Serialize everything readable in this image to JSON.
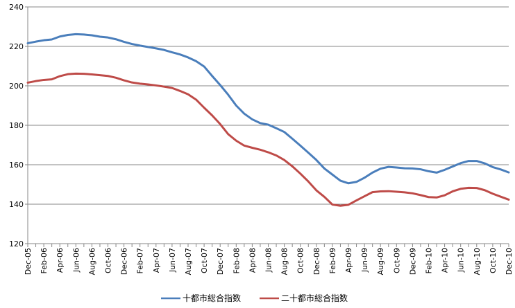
{
  "chart_data": {
    "type": "line",
    "title": "",
    "xlabel": "",
    "ylabel": "",
    "ylim": [
      120,
      240
    ],
    "yticks": [
      120,
      140,
      160,
      180,
      200,
      220,
      240
    ],
    "grid": true,
    "legend_position": "bottom",
    "tick_labels": [
      "Dec-05",
      "Feb-06",
      "Apr-06",
      "Jun-06",
      "Aug-06",
      "Oct-06",
      "Dec-06",
      "Feb-07",
      "Apr-07",
      "Jun-07",
      "Aug-07",
      "Oct-07",
      "Dec-07",
      "Feb-08",
      "Apr-08",
      "Jun-08",
      "Aug-08",
      "Oct-08",
      "Dec-08",
      "Feb-09",
      "Apr-09",
      "Jun-09",
      "Aug-09",
      "Oct-09",
      "Dec-09",
      "Feb-10",
      "Apr-10",
      "Jun-10",
      "Aug-10",
      "Oct-10",
      "Dec-10"
    ],
    "categories": [
      "Dec-05",
      "Jan-06",
      "Feb-06",
      "Mar-06",
      "Apr-06",
      "May-06",
      "Jun-06",
      "Jul-06",
      "Aug-06",
      "Sep-06",
      "Oct-06",
      "Nov-06",
      "Dec-06",
      "Jan-07",
      "Feb-07",
      "Mar-07",
      "Apr-07",
      "May-07",
      "Jun-07",
      "Jul-07",
      "Aug-07",
      "Sep-07",
      "Oct-07",
      "Nov-07",
      "Dec-07",
      "Jan-08",
      "Feb-08",
      "Mar-08",
      "Apr-08",
      "May-08",
      "Jun-08",
      "Jul-08",
      "Aug-08",
      "Sep-08",
      "Oct-08",
      "Nov-08",
      "Dec-08",
      "Jan-09",
      "Feb-09",
      "Mar-09",
      "Apr-09",
      "May-09",
      "Jun-09",
      "Jul-09",
      "Aug-09",
      "Sep-09",
      "Oct-09",
      "Nov-09",
      "Dec-09",
      "Jan-10",
      "Feb-10",
      "Mar-10",
      "Apr-10",
      "May-10",
      "Jun-10",
      "Jul-10",
      "Aug-10",
      "Sep-10",
      "Oct-10",
      "Nov-10",
      "Dec-10"
    ],
    "series": [
      {
        "name": "十都市総合指数",
        "color": "#4A7EBB",
        "values": [
          221.6,
          222.4,
          223.1,
          223.5,
          225.0,
          225.8,
          226.2,
          226.0,
          225.6,
          224.9,
          224.5,
          223.6,
          222.3,
          221.2,
          220.4,
          219.7,
          219.0,
          218.2,
          217.0,
          215.9,
          214.4,
          212.5,
          209.8,
          205.0,
          200.4,
          195.5,
          190.0,
          185.9,
          183.0,
          181.1,
          180.3,
          178.5,
          176.6,
          173.2,
          169.7,
          166.1,
          162.4,
          158.1,
          155.0,
          151.9,
          150.6,
          151.3,
          153.4,
          156.0,
          158.0,
          158.9,
          158.6,
          158.2,
          158.1,
          157.7,
          156.7,
          156.0,
          157.4,
          159.1,
          160.8,
          161.9,
          161.9,
          160.7,
          158.8,
          157.6,
          156.1
        ]
      },
      {
        "name": "二十都市総合指数",
        "color": "#BE4B48",
        "values": [
          201.6,
          202.4,
          203.0,
          203.3,
          204.9,
          205.9,
          206.2,
          206.1,
          205.8,
          205.4,
          205.0,
          204.1,
          202.8,
          201.7,
          201.1,
          200.7,
          200.2,
          199.6,
          198.9,
          197.4,
          195.7,
          193.0,
          188.9,
          185.0,
          180.6,
          175.5,
          172.2,
          169.7,
          168.6,
          167.6,
          166.3,
          164.7,
          162.4,
          159.2,
          155.5,
          151.5,
          147.0,
          143.7,
          139.8,
          139.2,
          139.7,
          141.9,
          144.0,
          146.1,
          146.5,
          146.6,
          146.3,
          146.0,
          145.5,
          144.6,
          143.6,
          143.4,
          144.5,
          146.5,
          147.8,
          148.3,
          148.2,
          147.1,
          145.3,
          143.8,
          142.3
        ]
      }
    ]
  }
}
